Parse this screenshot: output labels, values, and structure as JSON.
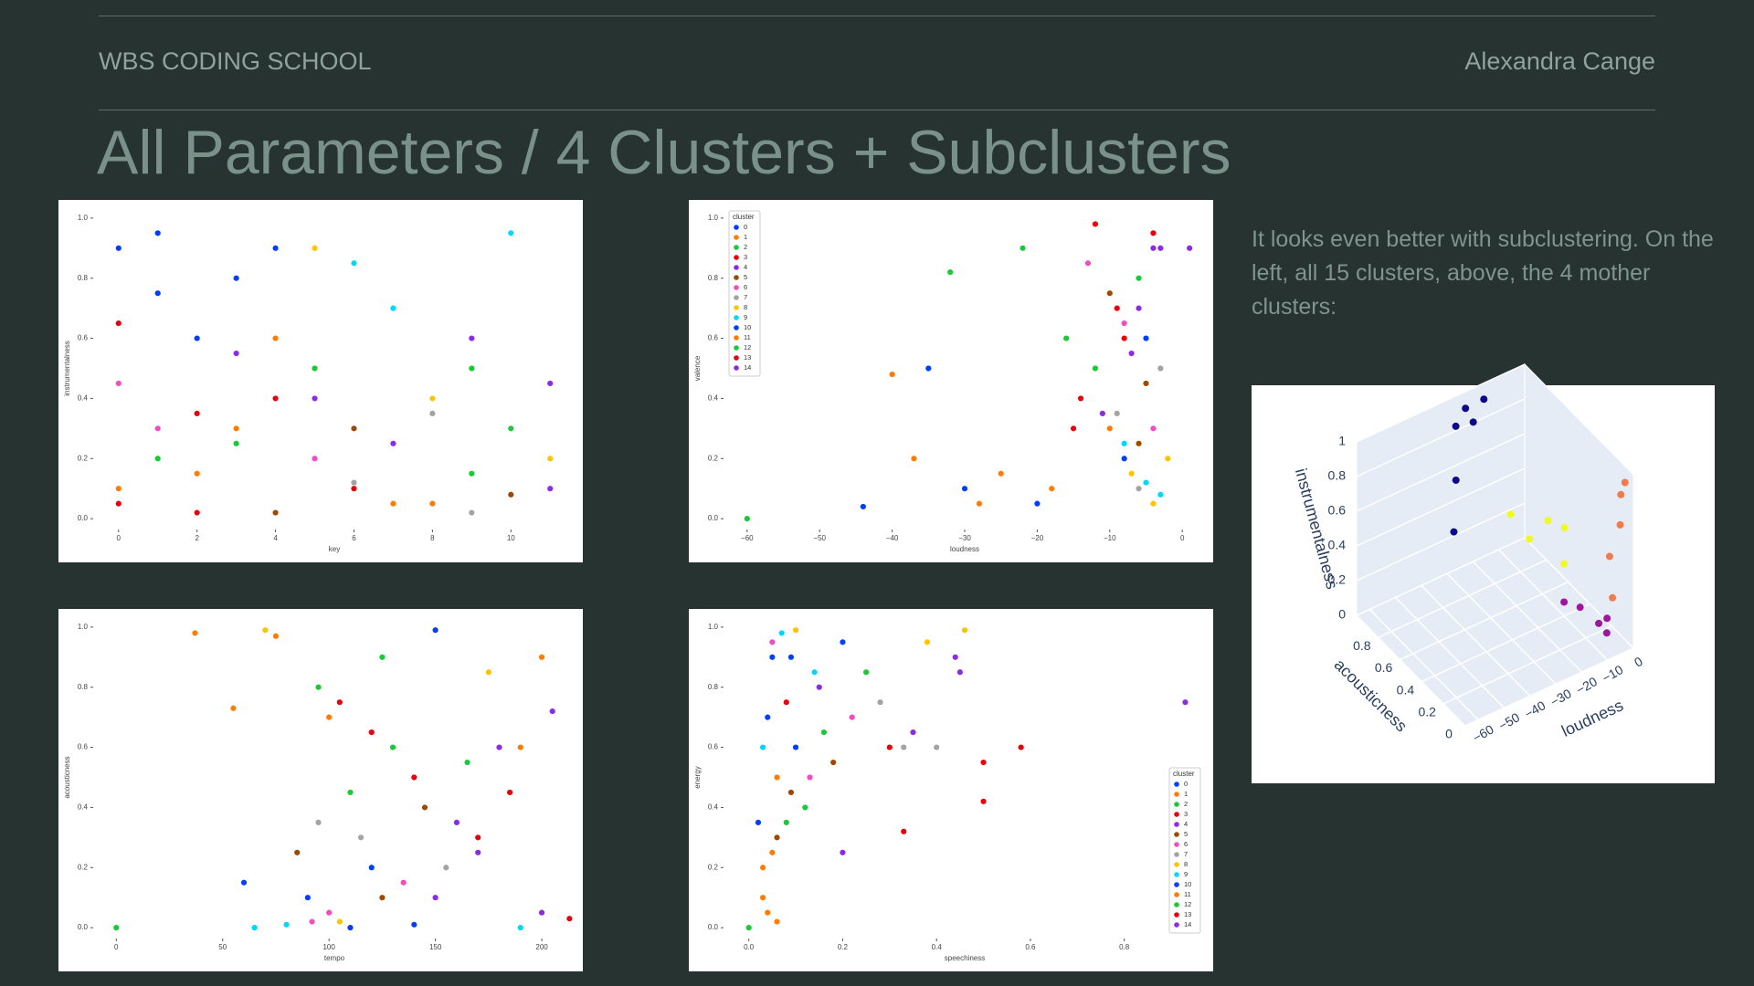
{
  "header": {
    "brand": "WBS CODING SCHOOL",
    "author": "Alexandra Cange"
  },
  "title": "All Parameters / 4 Clusters + Subclusters",
  "description": "It looks even better with subclustering. On the left, all 15 clusters, above, the 4 mother clusters:",
  "chart_data": [
    {
      "type": "scatter",
      "xlabel": "key",
      "ylabel": "instrumentalness",
      "xlim": [
        -0.6,
        11.6
      ],
      "ylim": [
        -0.03,
        1.03
      ],
      "xticks": [
        0,
        2,
        4,
        6,
        8,
        10
      ],
      "yticks": [
        {
          "value": 0,
          "label": "0.0"
        },
        0.2,
        0.4,
        0.6,
        0.8,
        {
          "value": 1,
          "label": "1.0"
        }
      ],
      "series": [
        {
          "color": "#023eff",
          "x": [
            0,
            1,
            2
          ],
          "values": [
            0.9,
            0.75,
            0.6
          ]
        },
        {
          "color": "#ff7c00",
          "x": [
            0,
            3,
            8
          ],
          "values": [
            0.1,
            0.3,
            0.05
          ]
        },
        {
          "color": "#1ac938",
          "x": [
            1,
            5,
            9
          ],
          "values": [
            0.2,
            0.5,
            0.15
          ]
        },
        {
          "color": "#e8000b",
          "x": [
            2,
            0,
            4
          ],
          "values": [
            0.35,
            0.05,
            0.4
          ]
        },
        {
          "color": "#8b2be2",
          "x": [
            3,
            7,
            11
          ],
          "values": [
            0.55,
            0.25,
            0.1
          ]
        },
        {
          "color": "#9f4800",
          "x": [
            4,
            10,
            6
          ],
          "values": [
            0.02,
            0.08,
            0.3
          ]
        },
        {
          "color": "#f14cc1",
          "x": [
            0,
            1,
            5
          ],
          "values": [
            0.45,
            0.3,
            0.2
          ]
        },
        {
          "color": "#a3a3a3",
          "x": [
            6,
            8,
            9
          ],
          "values": [
            0.12,
            0.35,
            0.02
          ]
        },
        {
          "color": "#ffc400",
          "x": [
            5,
            8,
            11
          ],
          "values": [
            0.9,
            0.4,
            0.2
          ]
        },
        {
          "color": "#00d7ff",
          "x": [
            6,
            7,
            10
          ],
          "values": [
            0.85,
            0.7,
            0.95
          ]
        },
        {
          "color": "#023eff",
          "x": [
            1,
            3,
            4
          ],
          "values": [
            0.95,
            0.8,
            0.9
          ]
        },
        {
          "color": "#ff7c00",
          "x": [
            2,
            4,
            7
          ],
          "values": [
            0.15,
            0.6,
            0.05
          ]
        },
        {
          "color": "#1ac938",
          "x": [
            3,
            9,
            10
          ],
          "values": [
            0.25,
            0.5,
            0.3
          ]
        },
        {
          "color": "#e8000b",
          "x": [
            0,
            2,
            6
          ],
          "values": [
            0.65,
            0.02,
            0.1
          ]
        },
        {
          "color": "#8b2be2",
          "x": [
            5,
            9,
            11
          ],
          "values": [
            0.4,
            0.6,
            0.45
          ]
        }
      ]
    },
    {
      "type": "scatter",
      "xlabel": "loudness",
      "ylabel": "valence",
      "xlim": [
        -63,
        3
      ],
      "ylim": [
        -0.03,
        1.03
      ],
      "xticks": [
        {
          "value": -60,
          "label": "−60"
        },
        {
          "value": -50,
          "label": "−50"
        },
        {
          "value": -40,
          "label": "−40"
        },
        {
          "value": -30,
          "label": "−30"
        },
        {
          "value": -20,
          "label": "−20"
        },
        {
          "value": -10,
          "label": "−10"
        },
        0
      ],
      "yticks": [
        {
          "value": 0,
          "label": "0.0"
        },
        0.2,
        0.4,
        0.6,
        0.8,
        {
          "value": 1,
          "label": "1.0"
        }
      ],
      "legend": "upper left",
      "legend_title": "cluster",
      "series": [
        {
          "name": "0",
          "color": "#023eff",
          "x": [
            -5,
            -8,
            -30
          ],
          "values": [
            0.6,
            0.2,
            0.1
          ]
        },
        {
          "name": "1",
          "color": "#ff7c00",
          "x": [
            -10,
            -25,
            -40
          ],
          "values": [
            0.3,
            0.15,
            0.48
          ]
        },
        {
          "name": "2",
          "color": "#1ac938",
          "x": [
            -6,
            -12,
            -32
          ],
          "values": [
            0.8,
            0.5,
            0.82
          ]
        },
        {
          "name": "3",
          "color": "#e8000b",
          "x": [
            -4,
            -14,
            -9
          ],
          "values": [
            0.95,
            0.4,
            0.7
          ]
        },
        {
          "name": "4",
          "color": "#8b2be2",
          "x": [
            -3,
            -7,
            -11
          ],
          "values": [
            0.9,
            0.55,
            0.35
          ]
        },
        {
          "name": "5",
          "color": "#9f4800",
          "x": [
            -5,
            -10,
            -6
          ],
          "values": [
            0.45,
            0.75,
            0.25
          ]
        },
        {
          "name": "6",
          "color": "#f14cc1",
          "x": [
            -8,
            -4,
            -13
          ],
          "values": [
            0.65,
            0.3,
            0.85
          ]
        },
        {
          "name": "7",
          "color": "#a3a3a3",
          "x": [
            -6,
            -9,
            -3
          ],
          "values": [
            0.1,
            0.35,
            0.5
          ]
        },
        {
          "name": "8",
          "color": "#ffc400",
          "x": [
            -4,
            -2,
            -7
          ],
          "values": [
            0.05,
            0.2,
            0.15
          ]
        },
        {
          "name": "9",
          "color": "#00d7ff",
          "x": [
            -5,
            -8,
            -3
          ],
          "values": [
            0.12,
            0.25,
            0.08
          ]
        },
        {
          "name": "10",
          "color": "#023eff",
          "x": [
            -20,
            -35,
            -44
          ],
          "values": [
            0.05,
            0.5,
            0.04
          ]
        },
        {
          "name": "11",
          "color": "#ff7c00",
          "x": [
            -18,
            -28,
            -37
          ],
          "values": [
            0.1,
            0.05,
            0.2
          ]
        },
        {
          "name": "12",
          "color": "#1ac938",
          "x": [
            -60,
            -16,
            -22
          ],
          "values": [
            0,
            0.6,
            0.9
          ]
        },
        {
          "name": "13",
          "color": "#e8000b",
          "x": [
            -12,
            -15,
            -8
          ],
          "values": [
            0.98,
            0.3,
            0.6
          ]
        },
        {
          "name": "14",
          "color": "#8b2be2",
          "x": [
            -6,
            -4,
            1
          ],
          "values": [
            0.7,
            0.9,
            0.9
          ]
        }
      ]
    },
    {
      "type": "scatter",
      "xlabel": "tempo",
      "ylabel": "acousticness",
      "xlim": [
        -10,
        215
      ],
      "ylim": [
        -0.03,
        1.03
      ],
      "xticks": [
        0,
        50,
        100,
        150,
        200
      ],
      "yticks": [
        {
          "value": 0,
          "label": "0.0"
        },
        0.2,
        0.4,
        0.6,
        0.8,
        {
          "value": 1,
          "label": "1.0"
        }
      ],
      "series": [
        {
          "color": "#023eff",
          "x": [
            120,
            150,
            90
          ],
          "values": [
            0.2,
            0.99,
            0.1
          ]
        },
        {
          "color": "#ff7c00",
          "x": [
            75,
            100,
            200
          ],
          "values": [
            0.97,
            0.7,
            0.9
          ]
        },
        {
          "color": "#1ac938",
          "x": [
            95,
            130,
            110
          ],
          "values": [
            0.8,
            0.6,
            0.45
          ]
        },
        {
          "color": "#e8000b",
          "x": [
            140,
            170,
            105
          ],
          "values": [
            0.5,
            0.3,
            0.75
          ]
        },
        {
          "color": "#8b2be2",
          "x": [
            180,
            200,
            160
          ],
          "values": [
            0.6,
            0.05,
            0.35
          ]
        },
        {
          "color": "#9f4800",
          "x": [
            85,
            125,
            145
          ],
          "values": [
            0.25,
            0.1,
            0.4
          ]
        },
        {
          "color": "#f14cc1",
          "x": [
            100,
            135,
            92
          ],
          "values": [
            0.05,
            0.15,
            0.02
          ]
        },
        {
          "color": "#a3a3a3",
          "x": [
            115,
            155,
            95
          ],
          "values": [
            0.3,
            0.2,
            0.35
          ]
        },
        {
          "color": "#ffc400",
          "x": [
            70,
            105,
            175
          ],
          "values": [
            0.99,
            0.02,
            0.85
          ]
        },
        {
          "color": "#00d7ff",
          "x": [
            65,
            80,
            190
          ],
          "values": [
            0,
            0.01,
            0
          ]
        },
        {
          "color": "#023eff",
          "x": [
            110,
            140,
            60
          ],
          "values": [
            0,
            0.01,
            0.15
          ]
        },
        {
          "color": "#ff7c00",
          "x": [
            37,
            55,
            190
          ],
          "values": [
            0.98,
            0.73,
            0.6
          ]
        },
        {
          "color": "#1ac938",
          "x": [
            0,
            125,
            165
          ],
          "values": [
            0,
            0.9,
            0.55
          ]
        },
        {
          "color": "#e8000b",
          "x": [
            120,
            185,
            213
          ],
          "values": [
            0.65,
            0.45,
            0.03
          ]
        },
        {
          "color": "#8b2be2",
          "x": [
            150,
            205,
            170
          ],
          "values": [
            0.1,
            0.72,
            0.25
          ]
        }
      ]
    },
    {
      "type": "scatter",
      "xlabel": "speechiness",
      "ylabel": "energy",
      "xlim": [
        -0.05,
        0.97
      ],
      "ylim": [
        -0.03,
        1.03
      ],
      "xticks": [
        {
          "value": 0,
          "label": "0.0"
        },
        0.2,
        0.4,
        0.6,
        0.8
      ],
      "yticks": [
        {
          "value": 0,
          "label": "0.0"
        },
        0.2,
        0.4,
        0.6,
        0.8,
        {
          "value": 1,
          "label": "1.0"
        }
      ],
      "legend": "lower right",
      "legend_title": "cluster",
      "series": [
        {
          "name": "0",
          "color": "#023eff",
          "x": [
            0.05,
            0.1,
            0.2
          ],
          "values": [
            0.9,
            0.6,
            0.95
          ]
        },
        {
          "name": "1",
          "color": "#ff7c00",
          "x": [
            0.03,
            0.04,
            0.06
          ],
          "values": [
            0.2,
            0.05,
            0.5
          ]
        },
        {
          "name": "2",
          "color": "#1ac938",
          "x": [
            0.04,
            0.12,
            0.25
          ],
          "values": [
            0.7,
            0.4,
            0.85
          ]
        },
        {
          "name": "3",
          "color": "#e8000b",
          "x": [
            0.08,
            0.3,
            0.5
          ],
          "values": [
            0.75,
            0.6,
            0.55
          ]
        },
        {
          "name": "4",
          "color": "#8b2be2",
          "x": [
            0.15,
            0.35,
            0.45
          ],
          "values": [
            0.8,
            0.65,
            0.85
          ]
        },
        {
          "name": "5",
          "color": "#9f4800",
          "x": [
            0.06,
            0.18,
            0.09
          ],
          "values": [
            0.3,
            0.55,
            0.45
          ]
        },
        {
          "name": "6",
          "color": "#f14cc1",
          "x": [
            0.05,
            0.22,
            0.13
          ],
          "values": [
            0.95,
            0.7,
            0.5
          ]
        },
        {
          "name": "7",
          "color": "#a3a3a3",
          "x": [
            0.28,
            0.33,
            0.4
          ],
          "values": [
            0.75,
            0.6,
            0.6
          ]
        },
        {
          "name": "8",
          "color": "#ffc400",
          "x": [
            0.1,
            0.38,
            0.46
          ],
          "values": [
            0.99,
            0.95,
            0.99
          ]
        },
        {
          "name": "9",
          "color": "#00d7ff",
          "x": [
            0.07,
            0.14,
            0.03
          ],
          "values": [
            0.98,
            0.85,
            0.6
          ]
        },
        {
          "name": "10",
          "color": "#023eff",
          "x": [
            0.04,
            0.09,
            0.02
          ],
          "values": [
            0.7,
            0.9,
            0.35
          ]
        },
        {
          "name": "11",
          "color": "#ff7c00",
          "x": [
            0.03,
            0.05,
            0.06
          ],
          "values": [
            0.1,
            0.25,
            0.02
          ]
        },
        {
          "name": "12",
          "color": "#1ac938",
          "x": [
            0,
            0.08,
            0.16
          ],
          "values": [
            0,
            0.35,
            0.65
          ]
        },
        {
          "name": "13",
          "color": "#e8000b",
          "x": [
            0.58,
            0.5,
            0.33
          ],
          "values": [
            0.6,
            0.42,
            0.32
          ]
        },
        {
          "name": "14",
          "color": "#8b2be2",
          "x": [
            0.93,
            0.44,
            0.2
          ],
          "values": [
            0.75,
            0.9,
            0.25
          ]
        }
      ]
    },
    {
      "type": "scatter3d",
      "xlabel": "loudness",
      "ylabel": "acousticness",
      "zlabel": "instrumentalness",
      "xlim": [
        -65,
        0
      ],
      "ylim": [
        0,
        1
      ],
      "zlim": [
        0,
        1
      ],
      "xticks": [
        {
          "value": -60,
          "label": "−60"
        },
        {
          "value": -50,
          "label": "−50"
        },
        {
          "value": -40,
          "label": "−40"
        },
        {
          "value": -30,
          "label": "−30"
        },
        {
          "value": -20,
          "label": "−20"
        },
        {
          "value": -10,
          "label": "−10"
        },
        0
      ],
      "yticks": [
        0,
        0.2,
        0.4,
        0.6,
        0.8
      ],
      "zticks": [
        0,
        0.2,
        0.4,
        0.6,
        0.8,
        1
      ],
      "series": [
        {
          "color": "#0d0887",
          "x": [
            -25,
            -20,
            -30,
            -35,
            -40,
            -22
          ],
          "y": [
            0.95,
            0.9,
            0.92,
            0.8,
            0.7,
            0.95
          ],
          "z": [
            0.95,
            1,
            0.9,
            0.7,
            0.5,
            0.85
          ]
        },
        {
          "color": "#f0f921",
          "x": [
            -15,
            -12,
            -10,
            -18,
            -14
          ],
          "y": [
            0.6,
            0.5,
            0.4,
            0.7,
            0.3
          ],
          "z": [
            0.35,
            0.5,
            0.3,
            0.45,
            0.6
          ]
        },
        {
          "color": "#9c179e",
          "x": [
            -8,
            -5,
            -6,
            -10,
            -4
          ],
          "y": [
            0.3,
            0.2,
            0.1,
            0.4,
            0.15
          ],
          "z": [
            0.1,
            0.05,
            0.15,
            0.08,
            0.02
          ]
        },
        {
          "color": "#ef7c4e",
          "x": [
            -4,
            -3,
            -5,
            -2,
            -6
          ],
          "y": [
            0.02,
            0.05,
            0.1,
            0.03,
            0.05
          ],
          "z": [
            0.9,
            0.7,
            0.5,
            0.95,
            0.3
          ]
        }
      ]
    }
  ]
}
